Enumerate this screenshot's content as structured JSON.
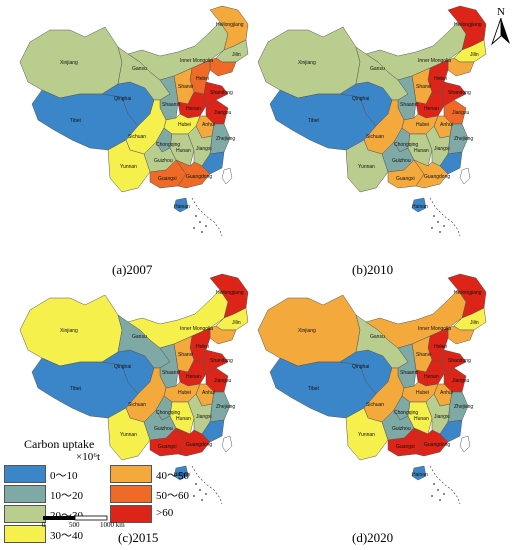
{
  "legend": {
    "title": "Carbon uptake",
    "unit": "×10⁶t",
    "classes": [
      {
        "label": "0～10",
        "color": "#3a86c8"
      },
      {
        "label": "10～20",
        "color": "#7fa9a4"
      },
      {
        "label": "20～30",
        "color": "#b9cd8e"
      },
      {
        "label": "30～40",
        "color": "#f6f04c"
      },
      {
        "label": "40～50",
        "color": "#f4a93d"
      },
      {
        "label": "50～60",
        "color": "#ee6a26"
      },
      {
        "label": ">60",
        "color": "#dd2418"
      }
    ]
  },
  "scale_bar": {
    "labels": [
      "0",
      "500",
      "1000 km"
    ]
  },
  "north_label": "N",
  "maps": [
    {
      "caption": "(a)2007",
      "classes": {
        "Xinjiang": 2,
        "Tibet": 0,
        "Qinghai": 0,
        "Gansu": 2,
        "Inner Mongolia": 2,
        "Heilongjiang": 4,
        "Jilin": 2,
        "Liaoning": 5,
        "Hebei": 5,
        "Shanxi": 4,
        "Shaanxi": 1,
        "Henan": 6,
        "Shandong": 6,
        "Jiangsu": 6,
        "Anhui": 4,
        "Hubei": 3,
        "Sichuan": 3,
        "Chongqing": 1,
        "Yunnan": 3,
        "Guizhou": 2,
        "Hunan": 2,
        "Jiangxi": 2,
        "Zhejiang": 1,
        "Fujian": 0,
        "Guangxi": 5,
        "Guangdong": 5,
        "Hainan": 0
      }
    },
    {
      "caption": "(b)2010",
      "classes": {
        "Xinjiang": 2,
        "Tibet": 0,
        "Qinghai": 0,
        "Gansu": 2,
        "Inner Mongolia": 2,
        "Heilongjiang": 6,
        "Jilin": 3,
        "Liaoning": 4,
        "Hebei": 6,
        "Shanxi": 4,
        "Shaanxi": 1,
        "Henan": 6,
        "Shandong": 6,
        "Jiangsu": 5,
        "Anhui": 4,
        "Hubei": 4,
        "Sichuan": 4,
        "Chongqing": 1,
        "Yunnan": 2,
        "Guizhou": 1,
        "Hunan": 2,
        "Jiangxi": 2,
        "Zhejiang": 1,
        "Fujian": 0,
        "Guangxi": 4,
        "Guangdong": 4,
        "Hainan": 0
      }
    },
    {
      "caption": "(c)2015",
      "classes": {
        "Xinjiang": 3,
        "Tibet": 0,
        "Qinghai": 0,
        "Gansu": 1,
        "Inner Mongolia": 3,
        "Heilongjiang": 6,
        "Jilin": 3,
        "Liaoning": 4,
        "Hebei": 6,
        "Shanxi": 4,
        "Shaanxi": 1,
        "Henan": 6,
        "Shandong": 6,
        "Jiangsu": 6,
        "Anhui": 4,
        "Hubei": 4,
        "Sichuan": 4,
        "Chongqing": 1,
        "Yunnan": 3,
        "Guizhou": 1,
        "Hunan": 3,
        "Jiangxi": 2,
        "Zhejiang": 1,
        "Fujian": 0,
        "Guangxi": 6,
        "Guangdong": 6,
        "Hainan": 0
      }
    },
    {
      "caption": "(d)2020",
      "classes": {
        "Xinjiang": 4,
        "Tibet": 0,
        "Qinghai": 0,
        "Gansu": 2,
        "Inner Mongolia": 4,
        "Heilongjiang": 6,
        "Jilin": 3,
        "Liaoning": 4,
        "Hebei": 6,
        "Shanxi": 4,
        "Shaanxi": 1,
        "Henan": 6,
        "Shandong": 6,
        "Jiangsu": 6,
        "Anhui": 4,
        "Hubei": 4,
        "Sichuan": 4,
        "Chongqing": 1,
        "Yunnan": 3,
        "Guizhou": 1,
        "Hunan": 3,
        "Jiangxi": 2,
        "Zhejiang": 1,
        "Fujian": 0,
        "Guangxi": 6,
        "Guangdong": 6,
        "Hainan": 0
      }
    }
  ]
}
